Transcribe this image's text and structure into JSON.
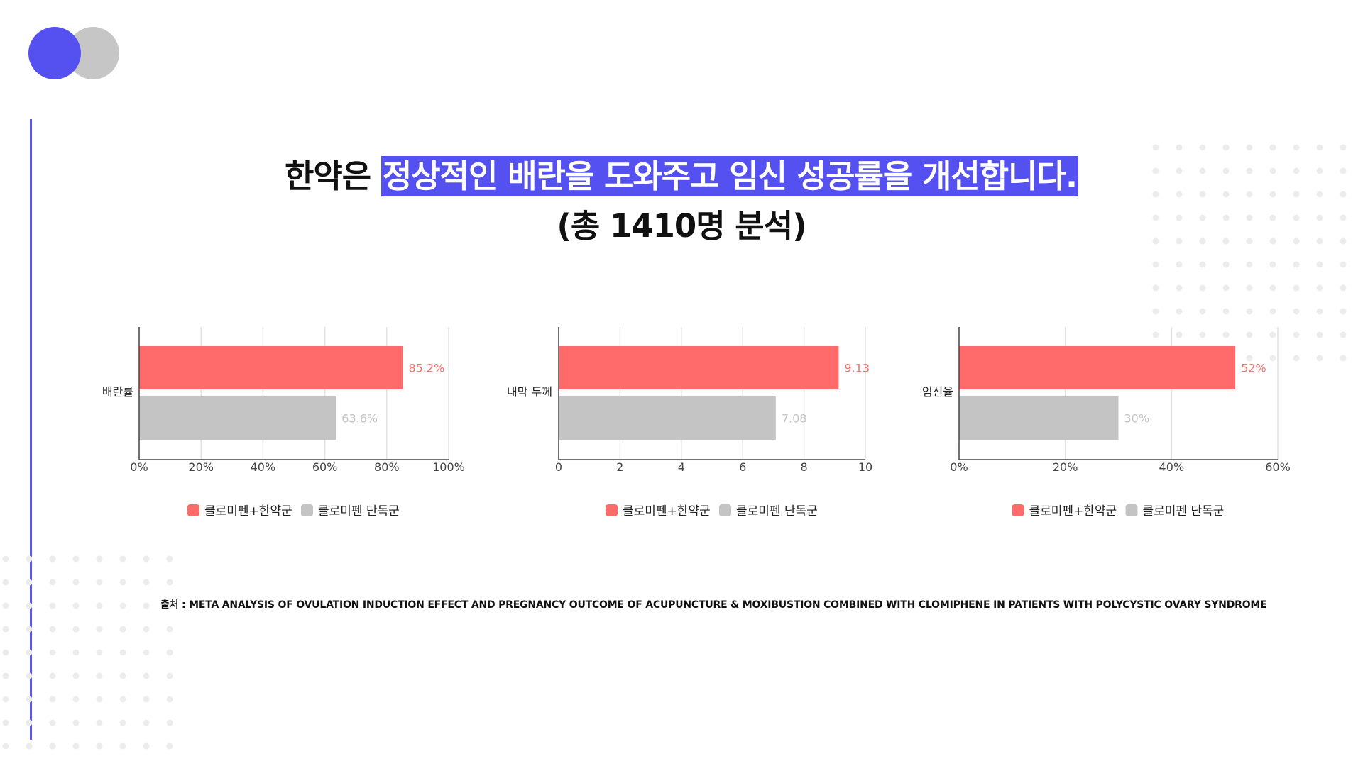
{
  "title": {
    "prefix": "한약은 ",
    "highlight": "정상적인 배란을 도와주고 임신 성공률을 개선합니다.",
    "subtitle": "(총 1410명 분석)"
  },
  "source": "출처 : META ANALYSIS OF OVULATION INDUCTION EFFECT AND PREGNANCY OUTCOME OF ACUPUNCTURE & MOXIBUSTION COMBINED WITH CLOMIPHENE IN PATIENTS WITH POLYCYSTIC OVARY SYNDROME",
  "colors": {
    "accent": "#5451f0",
    "combined": "#ff6b6b",
    "alone": "#c4c4c4"
  },
  "chart_data": [
    {
      "type": "bar",
      "orientation": "horizontal",
      "categories": [
        "배란률"
      ],
      "series": [
        {
          "name": "클로미펜+한약군",
          "values": [
            85.2
          ],
          "labels": [
            "85.2%"
          ],
          "color": "#ff6b6b"
        },
        {
          "name": "클로미펜 단독군",
          "values": [
            63.6
          ],
          "labels": [
            "63.6%"
          ],
          "color": "#c4c4c4"
        }
      ],
      "xlim": [
        0,
        100
      ],
      "ticks": [
        0,
        20,
        40,
        60,
        80,
        100
      ],
      "tick_labels": [
        "0%",
        "20%",
        "40%",
        "60%",
        "80%",
        "100%"
      ],
      "legend_position": "bottom",
      "grid": true
    },
    {
      "type": "bar",
      "orientation": "horizontal",
      "categories": [
        "내막 두께"
      ],
      "series": [
        {
          "name": "클로미펜+한약군",
          "values": [
            9.13
          ],
          "labels": [
            "9.13"
          ],
          "color": "#ff6b6b"
        },
        {
          "name": "클로미펜 단독군",
          "values": [
            7.08
          ],
          "labels": [
            "7.08"
          ],
          "color": "#c4c4c4"
        }
      ],
      "xlim": [
        0,
        10
      ],
      "ticks": [
        0,
        2,
        4,
        6,
        8,
        10
      ],
      "tick_labels": [
        "0",
        "2",
        "4",
        "6",
        "8",
        "10"
      ],
      "legend_position": "bottom",
      "grid": true
    },
    {
      "type": "bar",
      "orientation": "horizontal",
      "categories": [
        "임신율"
      ],
      "series": [
        {
          "name": "클로미펜+한약군",
          "values": [
            52
          ],
          "labels": [
            "52%"
          ],
          "color": "#ff6b6b"
        },
        {
          "name": "클로미펜 단독군",
          "values": [
            30
          ],
          "labels": [
            "30%"
          ],
          "color": "#c4c4c4"
        }
      ],
      "xlim": [
        0,
        60
      ],
      "ticks": [
        0,
        20,
        40,
        60
      ],
      "tick_labels": [
        "0%",
        "20%",
        "40%",
        "60%"
      ],
      "legend_position": "bottom",
      "grid": true
    }
  ]
}
